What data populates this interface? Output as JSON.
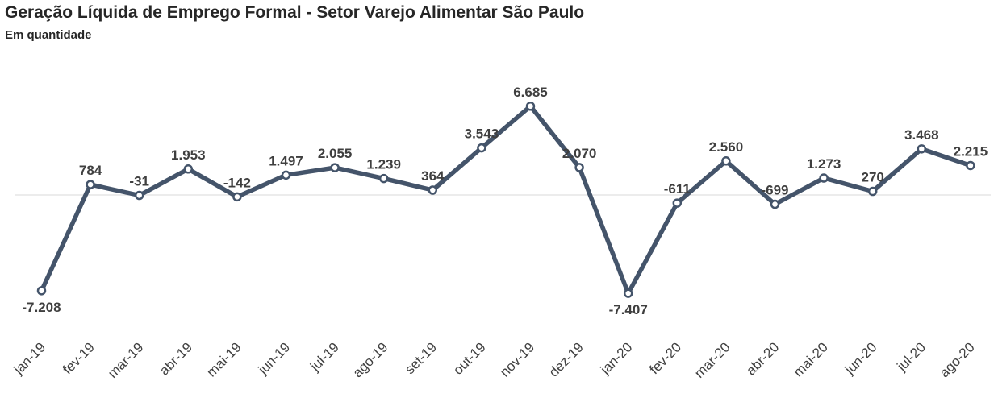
{
  "colors": {
    "line": "#44546a",
    "marker_fill": "#ffffff",
    "zero_line": "#d9d9d9",
    "label": "#3f3f3f"
  },
  "chart_data": {
    "type": "line",
    "title": "Geração Líquida de Emprego Formal - Setor Varejo Alimentar São Paulo",
    "subtitle": "Em quantidade",
    "categories": [
      "jan-19",
      "fev-19",
      "mar-19",
      "abr-19",
      "mai-19",
      "jun-19",
      "jul-19",
      "ago-19",
      "set-19",
      "out-19",
      "nov-19",
      "dez-19",
      "jan-20",
      "fev-20",
      "mar-20",
      "abr-20",
      "mai-20",
      "jun-20",
      "jul-20",
      "ago-20"
    ],
    "values": [
      -7208,
      784,
      -31,
      1953,
      -142,
      1497,
      2055,
      1239,
      364,
      3543,
      6685,
      2070,
      -7407,
      -611,
      2560,
      -699,
      1273,
      270,
      3468,
      2215
    ],
    "data_labels": [
      "-7.208",
      "784",
      "-31",
      "1.953",
      "-142",
      "1.497",
      "2.055",
      "1.239",
      "364",
      "3.543",
      "6.685",
      "2.070",
      "-7.407",
      "-611",
      "2.560",
      "-699",
      "1.273",
      "270",
      "3.468",
      "2.215"
    ],
    "label_position": [
      "below",
      "above",
      "above",
      "above",
      "above",
      "above",
      "above",
      "above",
      "above",
      "above",
      "above",
      "above",
      "below",
      "above",
      "above",
      "above",
      "above",
      "above",
      "above",
      "above"
    ],
    "ylim": [
      -8000,
      8000
    ],
    "grid": false,
    "zero_line": true,
    "markers": true
  }
}
